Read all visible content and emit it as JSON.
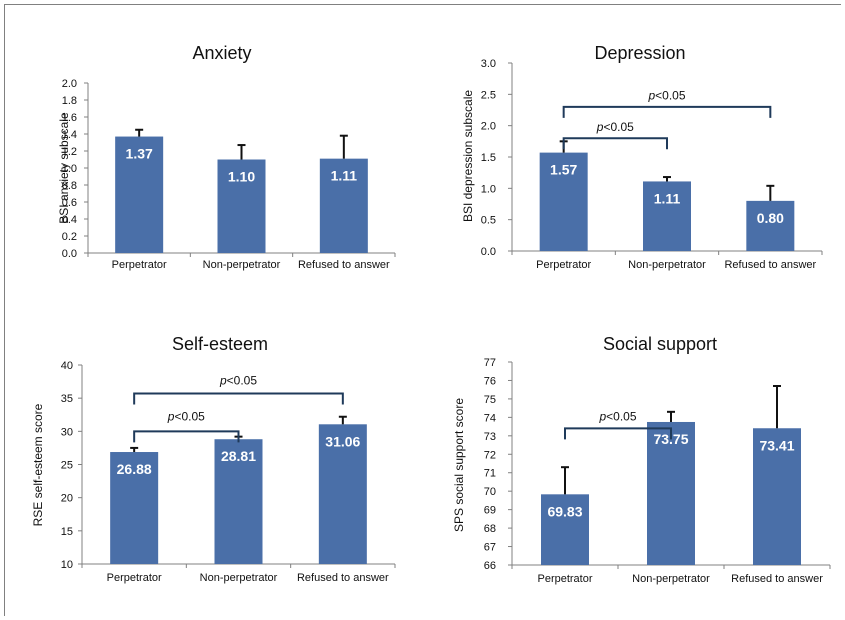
{
  "colors": {
    "bar": "#4a6fa8",
    "error": "#111111",
    "bracket": "#1f3a5a",
    "bar_label": "#ffffff"
  },
  "chart_data": [
    {
      "type": "bar",
      "title": "Anxiety",
      "ylabel": "BSI anxiety subscale",
      "categories": [
        "Perpetrator",
        "Non-perpetrator",
        "Refused to answer"
      ],
      "values": [
        1.37,
        1.1,
        1.11
      ],
      "value_labels": [
        "1.37",
        "1.10",
        "1.11"
      ],
      "error_upper": [
        1.45,
        1.27,
        1.38
      ],
      "ylim": [
        0,
        2
      ],
      "yticks": [
        "0.0",
        "0.2",
        "0.4",
        "0.6",
        "0.8",
        "1.0",
        "1.2",
        "1.4",
        "1.6",
        "1.8",
        "2.0"
      ],
      "annotations": []
    },
    {
      "type": "bar",
      "title": "Depression",
      "ylabel": "BSI depression subscale",
      "categories": [
        "Perpetrator",
        "Non-perpetrator",
        "Refused to answer"
      ],
      "values": [
        1.57,
        1.11,
        0.8
      ],
      "value_labels": [
        "1.57",
        "1.11",
        "0.80"
      ],
      "error_upper": [
        1.75,
        1.18,
        1.04
      ],
      "ylim": [
        0,
        3
      ],
      "yticks": [
        "0.0",
        "0.5",
        "1.0",
        "1.5",
        "2.0",
        "2.5",
        "3.0"
      ],
      "annotations": [
        {
          "text_italic": "p",
          "text_rest": "<0.05",
          "from": 0,
          "to": 1,
          "y": 1.8,
          "label_y": 1.98
        },
        {
          "text_italic": "p",
          "text_rest": "<0.05",
          "from": 0,
          "to": 2,
          "y": 2.3,
          "label_y": 2.48
        }
      ]
    },
    {
      "type": "bar",
      "title": "Self-esteem",
      "ylabel": "RSE self-esteem score",
      "categories": [
        "Perpetrator",
        "Non-perpetrator",
        "Refused to answer"
      ],
      "values": [
        26.88,
        28.81,
        31.06
      ],
      "value_labels": [
        "26.88",
        "28.81",
        "31.06"
      ],
      "error_upper": [
        27.5,
        29.2,
        32.2
      ],
      "ylim": [
        10,
        40
      ],
      "yticks": [
        "10",
        "15",
        "20",
        "25",
        "30",
        "35",
        "40"
      ],
      "annotations": [
        {
          "text_italic": "p",
          "text_rest": "<0.05",
          "from": 0,
          "to": 1,
          "y": 30.0,
          "label_y": 32.2
        },
        {
          "text_italic": "p",
          "text_rest": "<0.05",
          "from": 0,
          "to": 2,
          "y": 35.7,
          "label_y": 37.7
        }
      ]
    },
    {
      "type": "bar",
      "title": "Social support",
      "ylabel": "SPS social support score",
      "categories": [
        "Perpetrator",
        "Non-perpetrator",
        "Refused to answer"
      ],
      "values": [
        69.83,
        73.75,
        73.41
      ],
      "value_labels": [
        "69.83",
        "73.75",
        "73.41"
      ],
      "error_upper": [
        71.3,
        74.3,
        75.7
      ],
      "ylim": [
        66,
        77
      ],
      "yticks": [
        "66",
        "67",
        "68",
        "69",
        "70",
        "71",
        "72",
        "73",
        "74",
        "75",
        "76",
        "77"
      ],
      "annotations": [
        {
          "text_italic": "p",
          "text_rest": "<0.05",
          "from": 0,
          "to": 1,
          "y": 73.4,
          "label_y": 74.05
        }
      ]
    }
  ]
}
